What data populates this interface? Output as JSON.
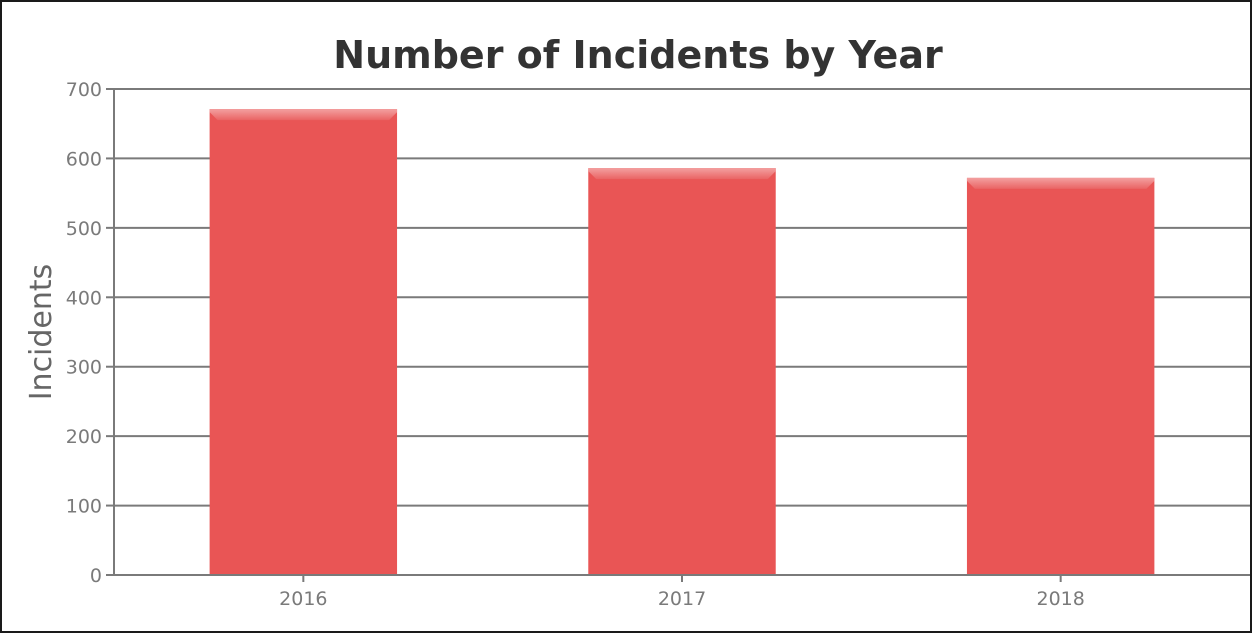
{
  "chart_data": {
    "type": "bar",
    "title": "Number of Incidents by Year",
    "xlabel": "",
    "ylabel": "Incidents",
    "categories": [
      "2016",
      "2017",
      "2018"
    ],
    "series": [
      {
        "values": [
          671,
          586,
          572
        ],
        "color": "#e95555"
      }
    ],
    "ylim": [
      0,
      700
    ],
    "yticks": [
      0,
      100,
      200,
      300,
      400,
      500,
      600,
      700
    ],
    "grid": true,
    "legend": "none"
  },
  "colors": {
    "bar": "#e95555",
    "bar_highlight": "#f08c8c",
    "grid": "#7a7a7a",
    "title": "#333333",
    "axis_text": "#7a7a7a"
  }
}
